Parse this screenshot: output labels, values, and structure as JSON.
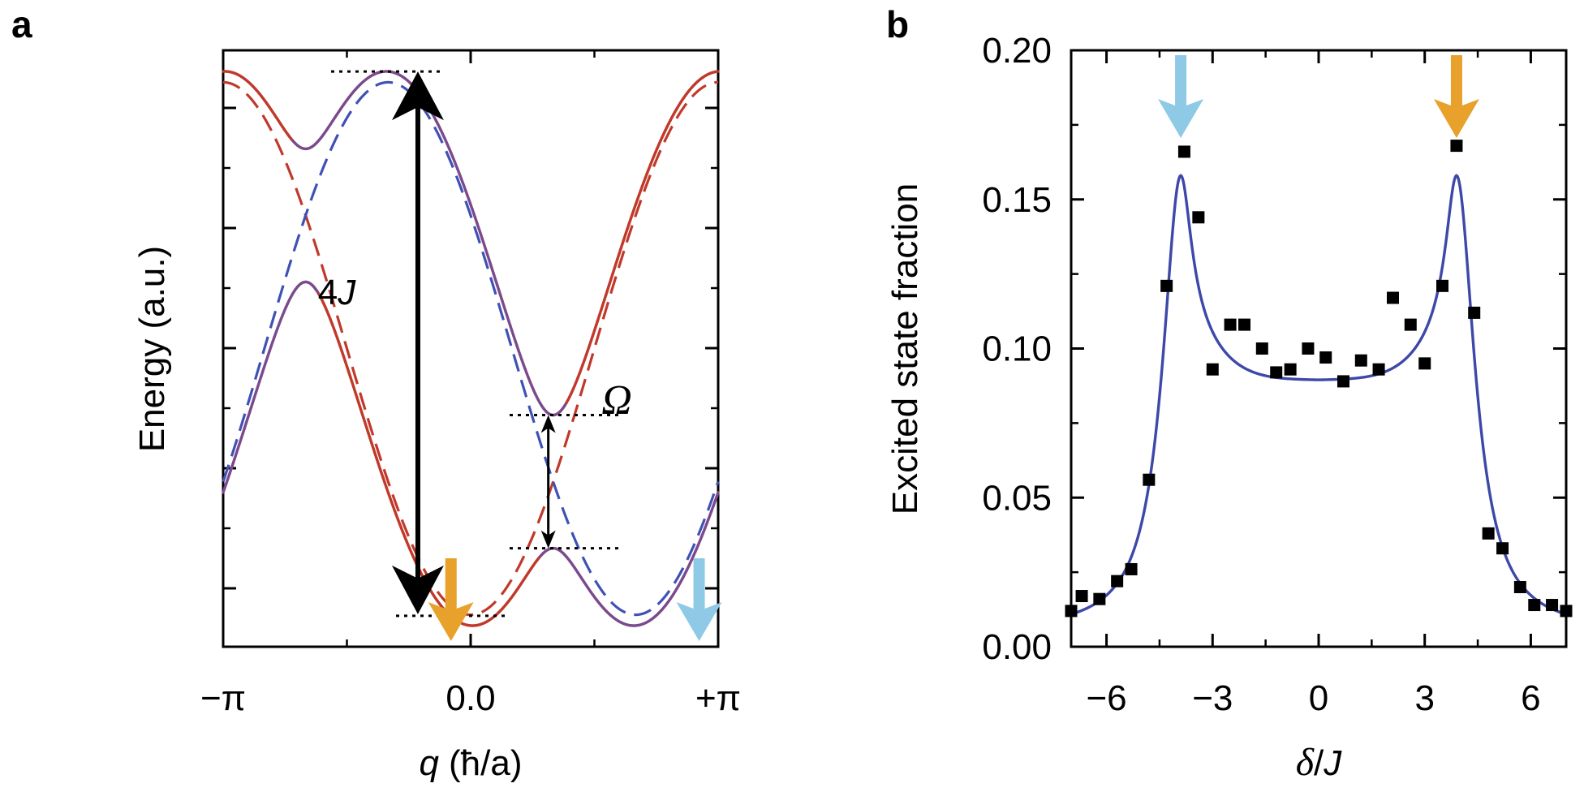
{
  "colors": {
    "red": "#c0392b",
    "purple": "#7b4a8c",
    "blue": "#3f51b5",
    "fit_blue": "#3d48a8",
    "orange": "#e8a12a",
    "light_blue": "#8ec9e6",
    "black": "#000000"
  },
  "chart_data": [
    {
      "panel": "a",
      "type": "line",
      "xlabel_var": "q",
      "xlabel_units": "(ħ/a)",
      "ylabel": "Energy (a.u.)",
      "xticks": [
        "−π",
        "0.0",
        "+π"
      ],
      "xrange": [
        -3.1416,
        3.1416
      ],
      "yrange": [
        -1.12,
        1.12
      ],
      "J": 0.5,
      "Omega": 0.5,
      "boost_q": 2.0944,
      "labels": {
        "four_j_num": "4",
        "four_j_var": "J",
        "omega": "Ω"
      },
      "series": [
        {
          "name": "upper band (solid)",
          "style": "solid"
        },
        {
          "name": "lower band (solid)",
          "style": "solid"
        },
        {
          "name": "ground dressed (dashed)",
          "style": "dashed",
          "color": "red"
        },
        {
          "name": "excited shifted (dashed)",
          "style": "dashed",
          "color": "blue"
        }
      ],
      "arrows": [
        {
          "name": "orange marker",
          "q": -0.25,
          "color": "orange"
        },
        {
          "name": "light blue marker",
          "q": 2.9,
          "color": "light_blue"
        }
      ]
    },
    {
      "panel": "b",
      "type": "scatter",
      "xlabel_var1": "δ",
      "xlabel_sep": "/",
      "xlabel_var2": "J",
      "ylabel": "Excited state fraction",
      "xlim": [
        -7,
        7
      ],
      "ylim": [
        0,
        0.2
      ],
      "xticks": [
        -6,
        -3,
        0,
        3,
        6
      ],
      "xtick_labels": [
        "−6",
        "−3",
        "0",
        "3",
        "6"
      ],
      "yticks": [
        0.0,
        0.05,
        0.1,
        0.15,
        0.2
      ],
      "ytick_labels": [
        "0.00",
        "0.05",
        "0.10",
        "0.15",
        "0.20"
      ],
      "points": {
        "x": [
          -7.0,
          -6.7,
          -6.2,
          -5.7,
          -5.3,
          -4.8,
          -4.3,
          -3.8,
          -3.4,
          -3.0,
          -2.5,
          -2.1,
          -1.6,
          -1.2,
          -0.8,
          -0.3,
          0.2,
          0.7,
          1.2,
          1.7,
          2.1,
          2.6,
          3.0,
          3.5,
          3.9,
          4.4,
          4.8,
          5.2,
          5.7,
          6.1,
          6.6,
          7.0
        ],
        "y": [
          0.012,
          0.017,
          0.016,
          0.022,
          0.026,
          0.056,
          0.121,
          0.166,
          0.144,
          0.093,
          0.108,
          0.108,
          0.1,
          0.092,
          0.093,
          0.1,
          0.097,
          0.089,
          0.096,
          0.093,
          0.117,
          0.108,
          0.095,
          0.121,
          0.168,
          0.112,
          0.038,
          0.033,
          0.02,
          0.014,
          0.014,
          0.012
        ]
      },
      "fit": {
        "name": "theory fit",
        "peak_x": 3.9,
        "peak_y": 0.158,
        "center_y": 0.089
      },
      "arrows": [
        {
          "name": "light blue peak arrow",
          "x": -3.9,
          "color": "light_blue"
        },
        {
          "name": "orange peak arrow",
          "x": 3.9,
          "color": "orange"
        }
      ]
    }
  ],
  "panel_letters": {
    "a": "a",
    "b": "b"
  }
}
